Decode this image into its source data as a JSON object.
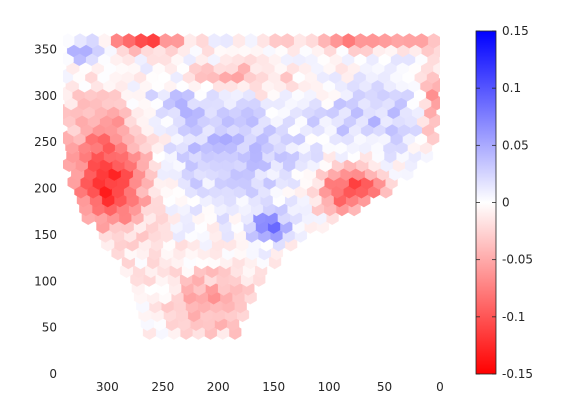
{
  "chart_data": {
    "type": "heatmap",
    "subtype": "hexagonal-bin",
    "title": "",
    "xlabel": "",
    "ylabel": "",
    "x_axis_direction": "reversed",
    "xlim": [
      340,
      0
    ],
    "ylim": [
      0,
      370
    ],
    "x_ticks": [
      300,
      250,
      200,
      150,
      100,
      50,
      0
    ],
    "y_ticks": [
      0,
      50,
      100,
      150,
      200,
      250,
      300,
      350
    ],
    "x_tick_labels": [
      "300",
      "250",
      "200",
      "150",
      "100",
      "50",
      "0"
    ],
    "y_tick_labels": [
      "0",
      "50",
      "100",
      "150",
      "200",
      "250",
      "300",
      "350"
    ],
    "hex_spacing": 11,
    "colorbar": {
      "placement": "right",
      "range": [
        -0.15,
        0.15
      ],
      "ticks": [
        0.15,
        0.1,
        0.05,
        0,
        -0.05,
        -0.1,
        -0.15
      ],
      "tick_labels": [
        "0.15",
        "0.1",
        "0.05",
        "0",
        "-0.05",
        "-0.1",
        "-0.15"
      ],
      "colormap": "red-white-blue",
      "low_color": "#ff0000",
      "mid_color": "#ffffff",
      "high_color": "#0000ff"
    },
    "field_description": "Approximate cell values on the hexagonal grid (x, y in data units, value in colorbar units)",
    "value_field": {
      "region": {
        "y_bottom": 45,
        "y_top": 365,
        "left_edge_at_y": [
          [
            45,
            265
          ],
          [
            100,
            282
          ],
          [
            140,
            300
          ],
          [
            170,
            320
          ],
          [
            200,
            335
          ],
          [
            230,
            340
          ],
          [
            365,
            340
          ]
        ],
        "right_edge_at_y": [
          [
            45,
            185
          ],
          [
            100,
            165
          ],
          [
            140,
            135
          ],
          [
            170,
            90
          ],
          [
            200,
            45
          ],
          [
            240,
            8
          ],
          [
            300,
            2
          ],
          [
            365,
            0
          ]
        ]
      },
      "features": [
        {
          "name": "left-red-band",
          "center": [
            300,
            230
          ],
          "spread": [
            40,
            75
          ],
          "value": -0.09
        },
        {
          "name": "left-red-core",
          "center": [
            295,
            195
          ],
          "spread": [
            25,
            30
          ],
          "value": -0.05
        },
        {
          "name": "top-left-red",
          "center": [
            265,
            365
          ],
          "spread": [
            35,
            14
          ],
          "value": -0.12
        },
        {
          "name": "top-right-red",
          "center": [
            60,
            365
          ],
          "spread": [
            70,
            12
          ],
          "value": -0.09
        },
        {
          "name": "mid-right-red",
          "center": [
            80,
            200
          ],
          "spread": [
            30,
            25
          ],
          "value": -0.11
        },
        {
          "name": "right-edge-red",
          "center": [
            5,
            290
          ],
          "spread": [
            10,
            40
          ],
          "value": -0.07
        },
        {
          "name": "upper-band-red",
          "center": [
            200,
            320
          ],
          "spread": [
            70,
            20
          ],
          "value": -0.06
        },
        {
          "name": "lower-lobe-red",
          "center": [
            200,
            80
          ],
          "spread": [
            50,
            40
          ],
          "value": -0.05
        },
        {
          "name": "center-blue",
          "center": [
            190,
            240
          ],
          "spread": [
            70,
            55
          ],
          "value": 0.035
        },
        {
          "name": "upper-blue",
          "center": [
            240,
            310
          ],
          "spread": [
            60,
            30
          ],
          "value": 0.045
        },
        {
          "name": "right-blue",
          "center": [
            60,
            280
          ],
          "spread": [
            50,
            40
          ],
          "value": 0.03
        },
        {
          "name": "small-blue-spot",
          "center": [
            155,
            160
          ],
          "spread": [
            15,
            15
          ],
          "value": 0.09
        },
        {
          "name": "top-left-blue",
          "center": [
            320,
            350
          ],
          "spread": [
            18,
            15
          ],
          "value": 0.06
        }
      ]
    }
  }
}
